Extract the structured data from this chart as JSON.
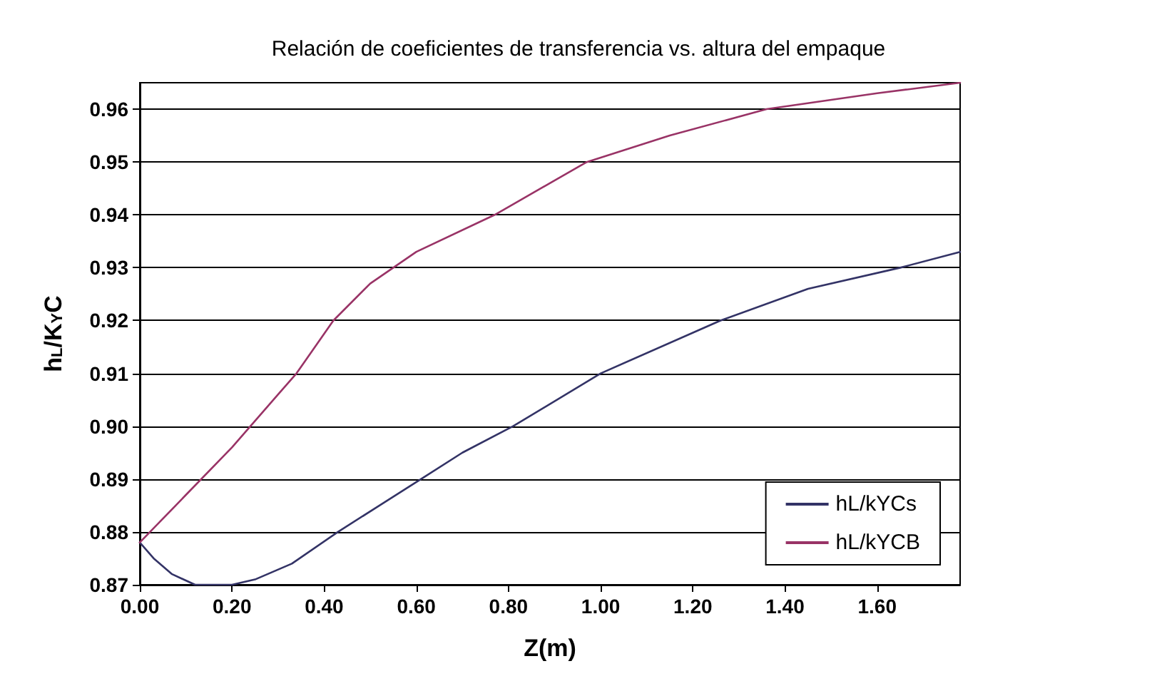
{
  "chart_data": {
    "type": "line",
    "title": "Relación de coeficientes de transferencia vs. altura del empaque",
    "xlabel": "Z(m)",
    "ylabel": "h$_{L}$/K$_{Y}$C",
    "xlim": [
      0,
      1.78
    ],
    "ylim": [
      0.87,
      0.965
    ],
    "xticks": [
      {
        "value": 0,
        "label": "0.00"
      },
      {
        "value": 0.2,
        "label": "0.20"
      },
      {
        "value": 0.4,
        "label": "0.40"
      },
      {
        "value": 0.6,
        "label": "0.60"
      },
      {
        "value": 0.8,
        "label": "0.80"
      },
      {
        "value": 1.0,
        "label": "1.00"
      },
      {
        "value": 1.2,
        "label": "1.20"
      },
      {
        "value": 1.4,
        "label": "1.40"
      },
      {
        "value": 1.6,
        "label": "1.60"
      }
    ],
    "yticks": [
      0.87,
      0.88,
      0.89,
      {
        "value": 0.9,
        "label": "0.90"
      },
      0.91,
      0.92,
      0.93,
      0.94,
      0.95,
      0.96
    ],
    "grid": "y",
    "legend": "bottom right",
    "marker": "none",
    "line_style": "solid",
    "series": [
      {
        "name": "hL/kYCs",
        "color": "#333366",
        "x": [
          0,
          0.03,
          0.07,
          0.12,
          0.2,
          0.25,
          0.33,
          0.43,
          0.52,
          0.61,
          0.7,
          0.81,
          1.0,
          1.26,
          1.45,
          1.65,
          1.78
        ],
        "values": [
          0.878,
          0.875,
          0.872,
          0.87,
          0.87,
          0.871,
          0.874,
          0.88,
          0.885,
          0.89,
          0.895,
          0.9,
          0.91,
          0.92,
          0.926,
          0.93,
          0.933
        ]
      },
      {
        "name": "hL/kYCB",
        "color": "#993366",
        "x": [
          0,
          0.1,
          0.2,
          0.3,
          0.34,
          0.42,
          0.5,
          0.6,
          0.77,
          0.97,
          1.15,
          1.36,
          1.6,
          1.78
        ],
        "values": [
          0.878,
          0.887,
          0.896,
          0.906,
          0.91,
          0.92,
          0.927,
          0.933,
          0.94,
          0.95,
          0.955,
          0.96,
          0.963,
          0.965
        ]
      }
    ]
  }
}
